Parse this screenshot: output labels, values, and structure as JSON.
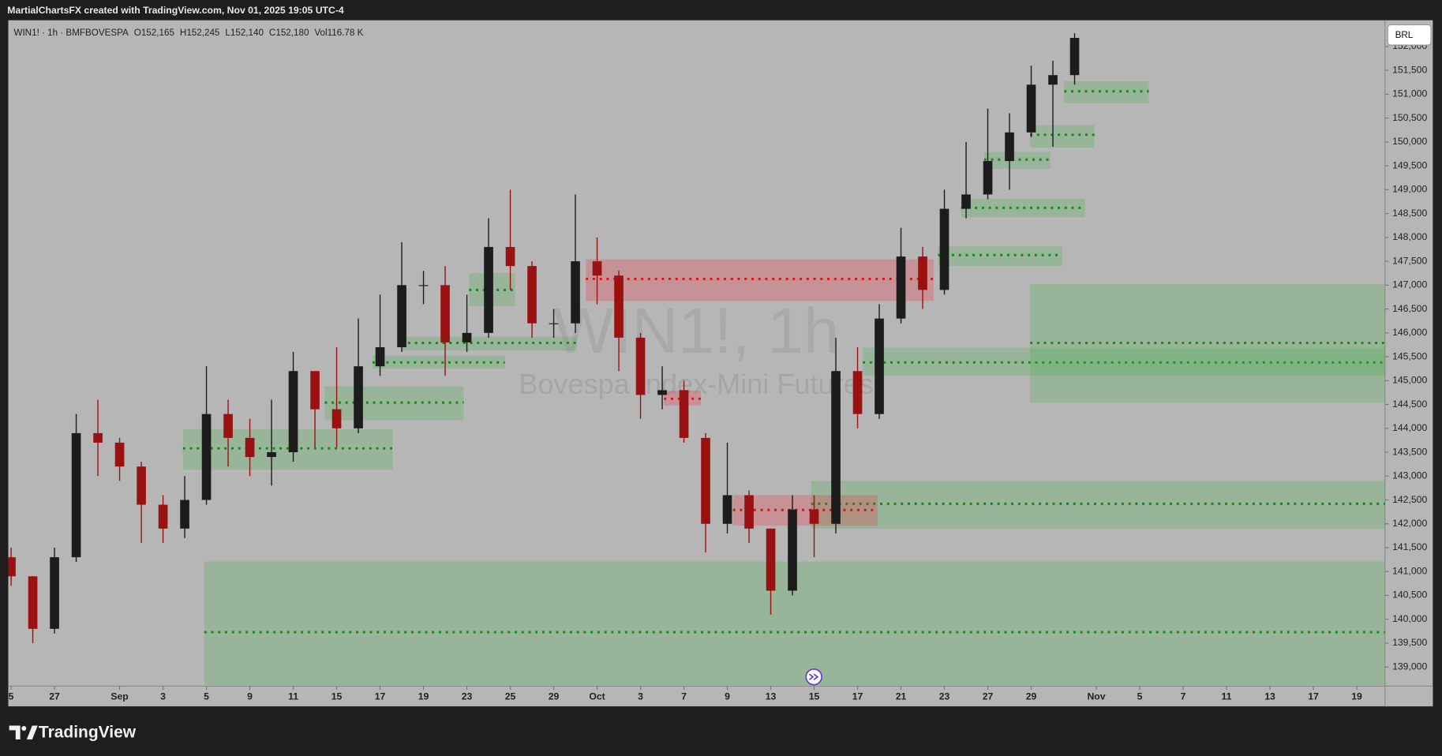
{
  "header": {
    "title": "MartialChartsFX created with TradingView.com, Nov 01, 2025 19:05 UTC-4"
  },
  "footer": {
    "brand": "TradingView"
  },
  "chart_data": {
    "type": "candlestick",
    "legend": {
      "symbol": "WIN1! · 1h · BMFBOVESPA",
      "fields": [
        {
          "key": "O",
          "value": "152,165"
        },
        {
          "key": "H",
          "value": "152,245"
        },
        {
          "key": "L",
          "value": "152,140"
        },
        {
          "key": "C",
          "value": "152,180"
        },
        {
          "key": "Vol",
          "value": "116.78 K"
        }
      ]
    },
    "watermark": {
      "title": "WIN1!, 1h",
      "subtitle": "Bovespa Index-Mini Futures"
    },
    "currency": "BRL",
    "up_color": "#1c1c1c",
    "down_color": "#9a1111",
    "x": [
      0,
      1,
      2,
      3,
      4,
      5,
      6,
      7,
      8,
      9,
      10,
      11,
      12,
      13,
      14,
      15,
      16,
      17,
      18,
      19,
      20,
      21,
      22,
      23,
      24,
      25,
      26,
      27,
      28,
      29,
      30,
      31,
      32,
      33,
      34,
      35,
      36,
      37,
      38,
      39,
      40,
      41,
      42,
      43,
      44,
      45,
      46,
      47,
      48,
      49
    ],
    "open": [
      141300,
      140900,
      139800,
      141300,
      143900,
      143700,
      143200,
      142400,
      141900,
      142500,
      144300,
      143800,
      143400,
      143500,
      145200,
      144400,
      144000,
      145300,
      145700,
      147000,
      147000,
      145800,
      146000,
      147800,
      147400,
      146200,
      146200,
      147500,
      147200,
      145900,
      144700,
      144800,
      143800,
      142000,
      142600,
      141900,
      140600,
      142300,
      142000,
      145200,
      144300,
      146300,
      147600,
      146900,
      148600,
      148900,
      149600,
      150200,
      151200,
      151400
    ],
    "high": [
      141500,
      140900,
      141500,
      144300,
      144600,
      143800,
      143300,
      142600,
      143000,
      145300,
      144600,
      144200,
      144600,
      145600,
      145200,
      145700,
      146300,
      146800,
      147900,
      147300,
      147400,
      146800,
      148400,
      149000,
      147500,
      146500,
      148900,
      148000,
      147300,
      146000,
      145300,
      145000,
      143900,
      143700,
      142700,
      141900,
      142600,
      142600,
      145900,
      145700,
      146600,
      148200,
      147800,
      149000,
      150000,
      150700,
      150600,
      151600,
      151700,
      152280
    ],
    "low": [
      140700,
      139500,
      139700,
      141200,
      143000,
      142900,
      141600,
      141600,
      141700,
      142400,
      143200,
      143000,
      142800,
      143300,
      143600,
      143600,
      143900,
      145100,
      145600,
      146600,
      145100,
      145600,
      145900,
      146900,
      145900,
      145900,
      146000,
      146600,
      145200,
      144200,
      144400,
      143700,
      141400,
      141800,
      141600,
      140100,
      140500,
      141300,
      141800,
      144000,
      144200,
      146200,
      146500,
      146800,
      148400,
      148800,
      149000,
      150100,
      149900,
      151200
    ],
    "close": [
      140900,
      139800,
      141300,
      143900,
      143700,
      143200,
      142400,
      141900,
      142500,
      144300,
      143800,
      143400,
      143500,
      145200,
      144400,
      144000,
      145300,
      145700,
      147000,
      147000,
      145800,
      146000,
      147800,
      147400,
      146200,
      146200,
      147500,
      147200,
      145900,
      144700,
      144800,
      143800,
      142000,
      142600,
      141900,
      140600,
      142300,
      142000,
      145200,
      144300,
      146300,
      147600,
      146900,
      148600,
      148900,
      149600,
      150200,
      151200,
      151400,
      152180
    ],
    "zones": [
      {
        "kind": "demand",
        "from": 7.92,
        "to": 17.58,
        "low": 143130,
        "high": 143980,
        "level": 143580
      },
      {
        "kind": "demand",
        "from": 14.45,
        "to": 20.85,
        "low": 144170,
        "high": 144880,
        "level": 144540
      },
      {
        "kind": "demand",
        "from": 16.65,
        "to": 22.75,
        "low": 145250,
        "high": 145520,
        "level": 145380
      },
      {
        "kind": "demand",
        "from": 17.97,
        "to": 26.06,
        "low": 145630,
        "high": 145920,
        "level": 145790
      },
      {
        "kind": "demand",
        "from": 21.1,
        "to": 23.22,
        "low": 146560,
        "high": 147250,
        "level": 146900
      },
      {
        "kind": "demand",
        "from": 39.24,
        "to": 63.3,
        "low": 145100,
        "high": 145690,
        "level": 145380
      },
      {
        "kind": "demand",
        "from": 46.95,
        "to": 63.3,
        "low": 144540,
        "high": 147020,
        "level": 145790
      },
      {
        "kind": "demand",
        "from": 36.86,
        "to": 63.3,
        "low": 141900,
        "high": 142900,
        "level": 142420
      },
      {
        "kind": "demand",
        "from": 8.9,
        "to": 63.3,
        "low": 138620,
        "high": 141210,
        "level": 139730
      },
      {
        "kind": "demand",
        "from": 42.71,
        "to": 48.43,
        "low": 147400,
        "high": 147810,
        "level": 147630
      },
      {
        "kind": "demand",
        "from": 43.77,
        "to": 49.49,
        "low": 148420,
        "high": 148810,
        "level": 148620
      },
      {
        "kind": "demand",
        "from": 44.83,
        "to": 47.88,
        "low": 149440,
        "high": 149790,
        "level": 149630
      },
      {
        "kind": "demand",
        "from": 46.95,
        "to": 49.92,
        "low": 149880,
        "high": 150350,
        "level": 150150
      },
      {
        "kind": "demand",
        "from": 48.52,
        "to": 52.42,
        "low": 150810,
        "high": 151270,
        "level": 151060
      },
      {
        "kind": "supply",
        "from": 26.48,
        "to": 42.5,
        "low": 146670,
        "high": 147540,
        "level": 147130
      },
      {
        "kind": "supply",
        "from": 30.08,
        "to": 31.78,
        "low": 144480,
        "high": 144790,
        "level": 144620
      },
      {
        "kind": "supply",
        "from": 33.26,
        "to": 39.92,
        "low": 141960,
        "high": 142600,
        "level": 142290
      }
    ],
    "zone_colors": {
      "demand": "#4caf50",
      "supply": "#f23645"
    },
    "level_colors": {
      "demand": "#0f8a14",
      "supply": "#e01010"
    },
    "xlim": [
      -0.13,
      63.3
    ],
    "ylim": [
      138600,
      152550
    ],
    "yticks": [
      {
        "value": 139000,
        "label": "139,000"
      },
      {
        "value": 139500,
        "label": "139,500"
      },
      {
        "value": 140000,
        "label": "140,000"
      },
      {
        "value": 140500,
        "label": "140,500"
      },
      {
        "value": 141000,
        "label": "141,000"
      },
      {
        "value": 141500,
        "label": "141,500"
      },
      {
        "value": 142000,
        "label": "142,000"
      },
      {
        "value": 142500,
        "label": "142,500"
      },
      {
        "value": 143000,
        "label": "143,000"
      },
      {
        "value": 143500,
        "label": "143,500"
      },
      {
        "value": 144000,
        "label": "144,000"
      },
      {
        "value": 144500,
        "label": "144,500"
      },
      {
        "value": 145000,
        "label": "145,000"
      },
      {
        "value": 145500,
        "label": "145,500"
      },
      {
        "value": 146000,
        "label": "146,000"
      },
      {
        "value": 146500,
        "label": "146,500"
      },
      {
        "value": 147000,
        "label": "147,000"
      },
      {
        "value": 147500,
        "label": "147,500"
      },
      {
        "value": 148000,
        "label": "148,000"
      },
      {
        "value": 148500,
        "label": "148,500"
      },
      {
        "value": 149000,
        "label": "149,000"
      },
      {
        "value": 149500,
        "label": "149,500"
      },
      {
        "value": 150000,
        "label": "150,000"
      },
      {
        "value": 150500,
        "label": "150,500"
      },
      {
        "value": 151000,
        "label": "151,000"
      },
      {
        "value": 151500,
        "label": "151,500"
      },
      {
        "value": 152000,
        "label": "152,000"
      }
    ],
    "xticks": [
      {
        "value": 0,
        "label": "5"
      },
      {
        "value": 2,
        "label": "27"
      },
      {
        "value": 5,
        "label": "Sep"
      },
      {
        "value": 7,
        "label": "3"
      },
      {
        "value": 9,
        "label": "5"
      },
      {
        "value": 11,
        "label": "9"
      },
      {
        "value": 13,
        "label": "11"
      },
      {
        "value": 15,
        "label": "15"
      },
      {
        "value": 17,
        "label": "17"
      },
      {
        "value": 19,
        "label": "19"
      },
      {
        "value": 21,
        "label": "23"
      },
      {
        "value": 23,
        "label": "25"
      },
      {
        "value": 25,
        "label": "29"
      },
      {
        "value": 27,
        "label": "Oct"
      },
      {
        "value": 29,
        "label": "3"
      },
      {
        "value": 31,
        "label": "7"
      },
      {
        "value": 33,
        "label": "9"
      },
      {
        "value": 35,
        "label": "13"
      },
      {
        "value": 37,
        "label": "15"
      },
      {
        "value": 39,
        "label": "17"
      },
      {
        "value": 41,
        "label": "21"
      },
      {
        "value": 43,
        "label": "23"
      },
      {
        "value": 45,
        "label": "27"
      },
      {
        "value": 47,
        "label": "29"
      },
      {
        "value": 50,
        "label": "Nov"
      },
      {
        "value": 52,
        "label": "5"
      },
      {
        "value": 54,
        "label": "7"
      },
      {
        "value": 56,
        "label": "11"
      },
      {
        "value": 58,
        "label": "13"
      },
      {
        "value": 60,
        "label": "17"
      },
      {
        "value": 62,
        "label": "19"
      }
    ]
  }
}
